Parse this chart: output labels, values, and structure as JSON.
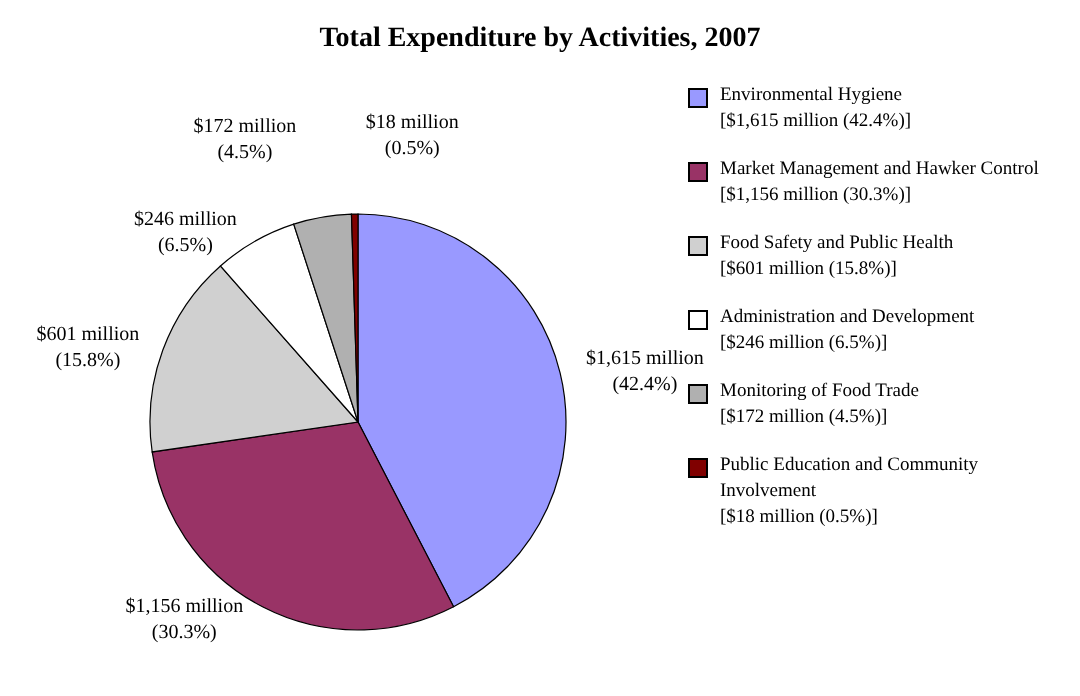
{
  "chart_data": {
    "type": "pie",
    "title": "Total Expenditure by Activities, 2007",
    "categories": [
      "Environmental Hygiene [$1,615 million (42.4%)]",
      "Market Management and Hawker Control [$1,156 million (30.3%)]",
      "Food Safety and Public Health [$601 million (15.8%)]",
      "Administration and Development [$246 million (6.5%)]",
      "Monitoring of Food Trade [$172 million (4.5%)]",
      "Public Education and Community Involvement [$18 million (0.5%)]"
    ],
    "values": [
      42.4,
      30.3,
      15.8,
      6.5,
      4.5,
      0.5
    ],
    "value_labels": [
      "$1,615 million (42.4%)",
      "$1,156 million (30.3%)",
      "$601 million (15.8%)",
      "$246 million (6.5%)",
      "$172 million (4.5%)",
      "$18 million (0.5%)"
    ],
    "colors": [
      "#9999ff",
      "#993366",
      "#d0d0d0",
      "#ffffff",
      "#b0b0b0",
      "#800000"
    ],
    "legend": "right"
  }
}
